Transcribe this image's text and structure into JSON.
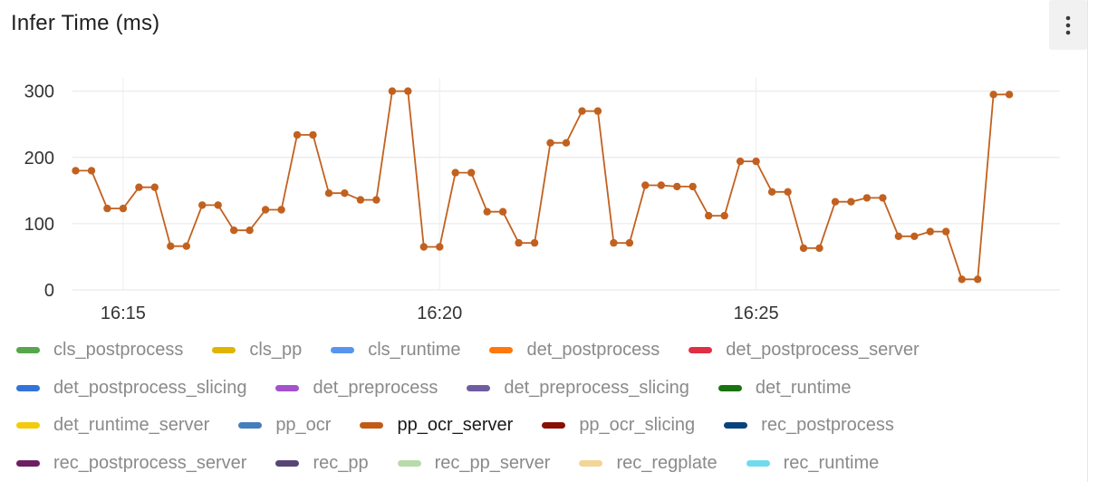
{
  "panel": {
    "title": "Infer Time (ms)",
    "menu_icon": "kebab-menu-icon"
  },
  "chart_data": {
    "type": "line",
    "title": "Infer Time (ms)",
    "xlabel": "",
    "ylabel": "",
    "ylim": [
      0,
      320
    ],
    "y_ticks": [
      0,
      100,
      200,
      300
    ],
    "x_time_range_minutes": [
      -0.8,
      14.8
    ],
    "x_ticks": [
      {
        "label": "16:15",
        "minute": 0
      },
      {
        "label": "16:20",
        "minute": 5
      },
      {
        "label": "16:25",
        "minute": 10
      }
    ],
    "grid": true,
    "legend_position": "bottom",
    "series": [
      {
        "name": "pp_ocr_server",
        "color": "#c2611f",
        "points": [
          [
            -0.75,
            180
          ],
          [
            -0.5,
            180
          ],
          [
            -0.25,
            123
          ],
          [
            0.0,
            123
          ],
          [
            0.25,
            155
          ],
          [
            0.5,
            155
          ],
          [
            0.75,
            66
          ],
          [
            1.0,
            66
          ],
          [
            1.25,
            128
          ],
          [
            1.5,
            128
          ],
          [
            1.75,
            90
          ],
          [
            2.0,
            90
          ],
          [
            2.25,
            121
          ],
          [
            2.5,
            121
          ],
          [
            2.75,
            234
          ],
          [
            3.0,
            234
          ],
          [
            3.25,
            146
          ],
          [
            3.5,
            146
          ],
          [
            3.75,
            136
          ],
          [
            4.0,
            136
          ],
          [
            4.25,
            300
          ],
          [
            4.5,
            300
          ],
          [
            4.75,
            65
          ],
          [
            5.0,
            65
          ],
          [
            5.25,
            177
          ],
          [
            5.5,
            177
          ],
          [
            5.75,
            118
          ],
          [
            6.0,
            118
          ],
          [
            6.25,
            71
          ],
          [
            6.5,
            71
          ],
          [
            6.75,
            222
          ],
          [
            7.0,
            222
          ],
          [
            7.25,
            270
          ],
          [
            7.5,
            270
          ],
          [
            7.75,
            71
          ],
          [
            8.0,
            71
          ],
          [
            8.25,
            158
          ],
          [
            8.5,
            158
          ],
          [
            8.75,
            156
          ],
          [
            9.0,
            156
          ],
          [
            9.25,
            112
          ],
          [
            9.5,
            112
          ],
          [
            9.75,
            194
          ],
          [
            10.0,
            194
          ],
          [
            10.25,
            148
          ],
          [
            10.5,
            148
          ],
          [
            10.75,
            63
          ],
          [
            11.0,
            63
          ],
          [
            11.25,
            133
          ],
          [
            11.5,
            133
          ],
          [
            11.75,
            139
          ],
          [
            12.0,
            139
          ],
          [
            12.25,
            81
          ],
          [
            12.5,
            81
          ],
          [
            12.75,
            88
          ],
          [
            13.0,
            88
          ],
          [
            13.25,
            16
          ],
          [
            13.5,
            16
          ],
          [
            13.75,
            295
          ],
          [
            14.0,
            295
          ]
        ]
      }
    ]
  },
  "legend": {
    "rows": [
      [
        {
          "label": "cls_postprocess",
          "color": "#56a64b"
        },
        {
          "label": "cls_pp",
          "color": "#e0b400"
        },
        {
          "label": "cls_runtime",
          "color": "#5794f2"
        },
        {
          "label": "det_postprocess",
          "color": "#ff780a"
        },
        {
          "label": "det_postprocess_server",
          "color": "#e02f44"
        }
      ],
      [
        {
          "label": "det_postprocess_slicing",
          "color": "#3274d9"
        },
        {
          "label": "det_preprocess",
          "color": "#a352cc"
        },
        {
          "label": "det_preprocess_slicing",
          "color": "#705da0"
        },
        {
          "label": "det_runtime",
          "color": "#19730e"
        }
      ],
      [
        {
          "label": "det_runtime_server",
          "color": "#f2cc0c"
        },
        {
          "label": "pp_ocr",
          "color": "#447ebc"
        },
        {
          "label": "pp_ocr_server",
          "color": "#c15c17",
          "active": true
        },
        {
          "label": "pp_ocr_slicing",
          "color": "#890f02"
        },
        {
          "label": "rec_postprocess",
          "color": "#0a437c"
        }
      ],
      [
        {
          "label": "rec_postprocess_server",
          "color": "#6d1f62"
        },
        {
          "label": "rec_pp",
          "color": "#584477"
        },
        {
          "label": "rec_pp_server",
          "color": "#b7dbab"
        },
        {
          "label": "rec_regplate",
          "color": "#f4d598"
        },
        {
          "label": "rec_runtime",
          "color": "#70dbed"
        }
      ]
    ]
  }
}
